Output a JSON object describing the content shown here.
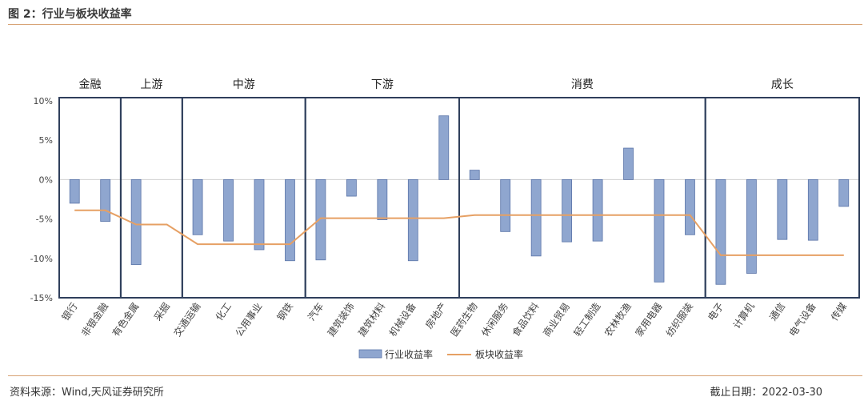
{
  "header": {
    "title": "图 2：行业与板块收益率"
  },
  "footer": {
    "source": "资料来源：Wind,天风证券研究所",
    "as_of": "截止日期：2022-03-30"
  },
  "colors": {
    "bar_fill": "#8fa6cf",
    "bar_stroke": "#5a74a8",
    "line": "#e6a064",
    "group_border": "#2f3f5c",
    "rule": "#d7a173"
  },
  "chart_data": {
    "type": "bar",
    "categories": [
      "银行",
      "非银金融",
      "有色金属",
      "采掘",
      "交通运输",
      "化工",
      "公用事业",
      "钢铁",
      "汽车",
      "建筑装饰",
      "建筑材料",
      "机械设备",
      "房地产",
      "医药生物",
      "休闲服务",
      "食品饮料",
      "商业贸易",
      "轻工制造",
      "农林牧渔",
      "家用电器",
      "纺织服装",
      "电子",
      "计算机",
      "通信",
      "电气设备",
      "传媒"
    ],
    "series": [
      {
        "name": "行业收益率",
        "type": "bar",
        "values": [
          -3.0,
          -5.3,
          -10.8,
          0,
          -7.0,
          -7.8,
          -8.9,
          -10.3,
          -10.2,
          -2.1,
          -5.1,
          -10.3,
          8.1,
          1.2,
          -6.6,
          -9.7,
          -7.9,
          -7.8,
          4.0,
          -13.0,
          -7.0,
          -13.3,
          -11.9,
          -7.6,
          -7.7,
          -3.4
        ]
      },
      {
        "name": "板块收益率",
        "type": "line",
        "values": [
          -3.9,
          -3.9,
          -5.7,
          -5.7,
          -8.2,
          -8.2,
          -8.2,
          -8.2,
          -4.9,
          -4.9,
          -4.9,
          -4.9,
          -4.9,
          -4.5,
          -4.5,
          -4.5,
          -4.5,
          -4.5,
          -4.5,
          -4.5,
          -4.5,
          -9.6,
          -9.6,
          -9.6,
          -9.6,
          -9.6
        ]
      }
    ],
    "groups": [
      {
        "name": "金融",
        "start": 0,
        "end": 1
      },
      {
        "name": "上游",
        "start": 2,
        "end": 3
      },
      {
        "name": "中游",
        "start": 4,
        "end": 7
      },
      {
        "name": "下游",
        "start": 8,
        "end": 12
      },
      {
        "name": "消费",
        "start": 13,
        "end": 20
      },
      {
        "name": "成长",
        "start": 21,
        "end": 25
      }
    ],
    "ylim": [
      -15,
      10
    ],
    "yticks": [
      10,
      5,
      0,
      -5,
      -10,
      -15
    ],
    "ytick_labels": [
      "10%",
      "5%",
      "0%",
      "-5%",
      "-10%",
      "-15%"
    ],
    "legend_position": "bottom-center"
  }
}
